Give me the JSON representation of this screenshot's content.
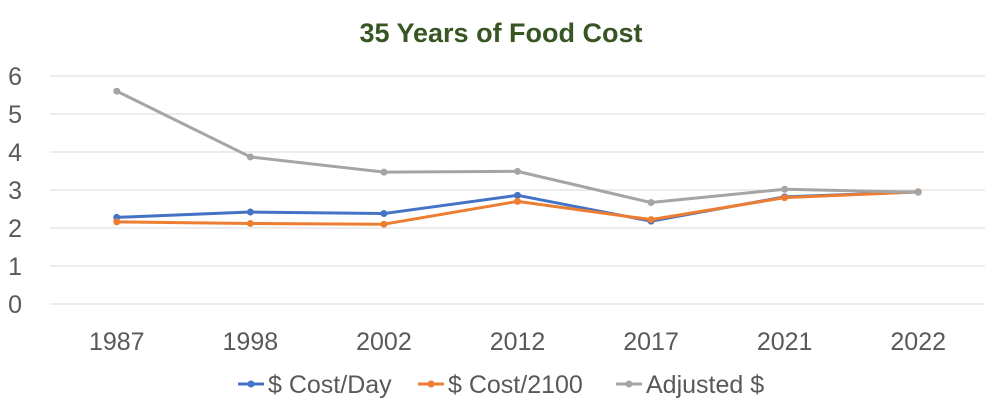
{
  "chart_data": {
    "type": "line",
    "title": "35 Years of Food Cost",
    "xlabel": "",
    "ylabel": "",
    "categories": [
      "1987",
      "1998",
      "2002",
      "2012",
      "2017",
      "2021",
      "2022"
    ],
    "ylim": [
      0,
      6
    ],
    "yticks": [
      0,
      1,
      2,
      3,
      4,
      5,
      6
    ],
    "grid": true,
    "legend_position": "bottom",
    "series": [
      {
        "name": "$ Cost/Day",
        "color": "#4472C4",
        "values": [
          2.28,
          2.42,
          2.38,
          2.86,
          2.18,
          2.82,
          2.95
        ]
      },
      {
        "name": "$ Cost/2100",
        "color": "#ED7D31",
        "values": [
          2.16,
          2.12,
          2.1,
          2.7,
          2.22,
          2.8,
          2.95
        ]
      },
      {
        "name": "Adjusted $",
        "color": "#A5A5A5",
        "values": [
          5.6,
          3.87,
          3.47,
          3.49,
          2.67,
          3.02,
          2.94
        ]
      }
    ],
    "title_color": "#375623",
    "grid_color": "#D9D9D9"
  }
}
